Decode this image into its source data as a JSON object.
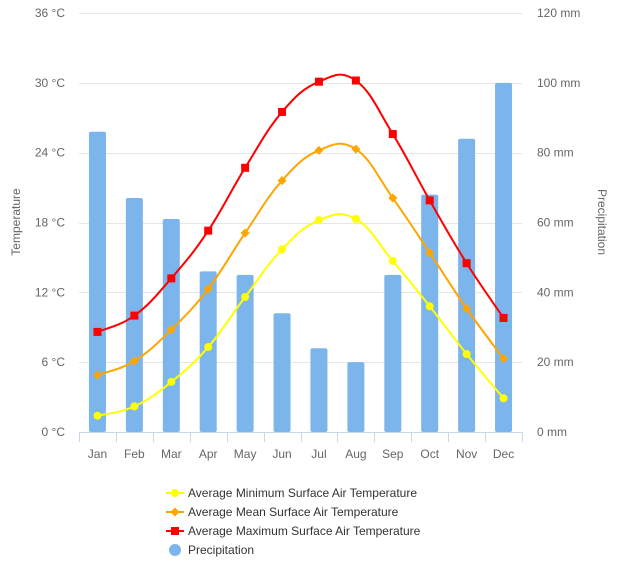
{
  "chart_data": {
    "type": "bar",
    "categories": [
      "Jan",
      "Feb",
      "Mar",
      "Apr",
      "May",
      "Jun",
      "Jul",
      "Aug",
      "Sep",
      "Oct",
      "Nov",
      "Dec"
    ],
    "y_left": {
      "label": "Temperature",
      "range": [
        0,
        36
      ],
      "ticks": [
        0,
        6,
        12,
        18,
        24,
        30,
        36
      ],
      "tick_labels": [
        "0 °C",
        "6 °C",
        "12 °C",
        "18 °C",
        "24 °C",
        "30 °C",
        "36 °C"
      ]
    },
    "y_right": {
      "label": "Precipitation",
      "range": [
        0,
        120
      ],
      "ticks": [
        0,
        20,
        40,
        60,
        80,
        100,
        120
      ],
      "tick_labels": [
        "0 mm",
        "20 mm",
        "40 mm",
        "60 mm",
        "80 mm",
        "100 mm",
        "120 mm"
      ]
    },
    "grid": true,
    "legend_position": "bottom",
    "series": [
      {
        "name": "Average Minimum Surface Air Temperature",
        "type": "line",
        "axis": "left",
        "color": "#ffff00",
        "marker": "circle",
        "values": [
          1.4,
          2.2,
          4.3,
          7.3,
          11.6,
          15.7,
          18.2,
          18.3,
          14.7,
          10.8,
          6.7,
          2.9
        ]
      },
      {
        "name": "Average Mean Surface Air Temperature",
        "type": "line",
        "axis": "left",
        "color": "#ffa500",
        "marker": "diamond",
        "values": [
          4.9,
          6.1,
          8.8,
          12.3,
          17.1,
          21.6,
          24.2,
          24.3,
          20.1,
          15.4,
          10.6,
          6.3
        ]
      },
      {
        "name": "Average Maximum Surface Air Temperature",
        "type": "line",
        "axis": "left",
        "color": "#ff0000",
        "marker": "square",
        "values": [
          8.6,
          10.0,
          13.2,
          17.3,
          22.7,
          27.5,
          30.1,
          30.2,
          25.6,
          19.9,
          14.5,
          9.8
        ]
      },
      {
        "name": "Precipitation",
        "type": "bar",
        "axis": "right",
        "color": "#7cb5ec",
        "marker": "circle",
        "values": [
          86,
          67,
          61,
          46,
          45,
          34,
          24,
          20,
          45,
          68,
          84,
          100
        ]
      }
    ]
  }
}
